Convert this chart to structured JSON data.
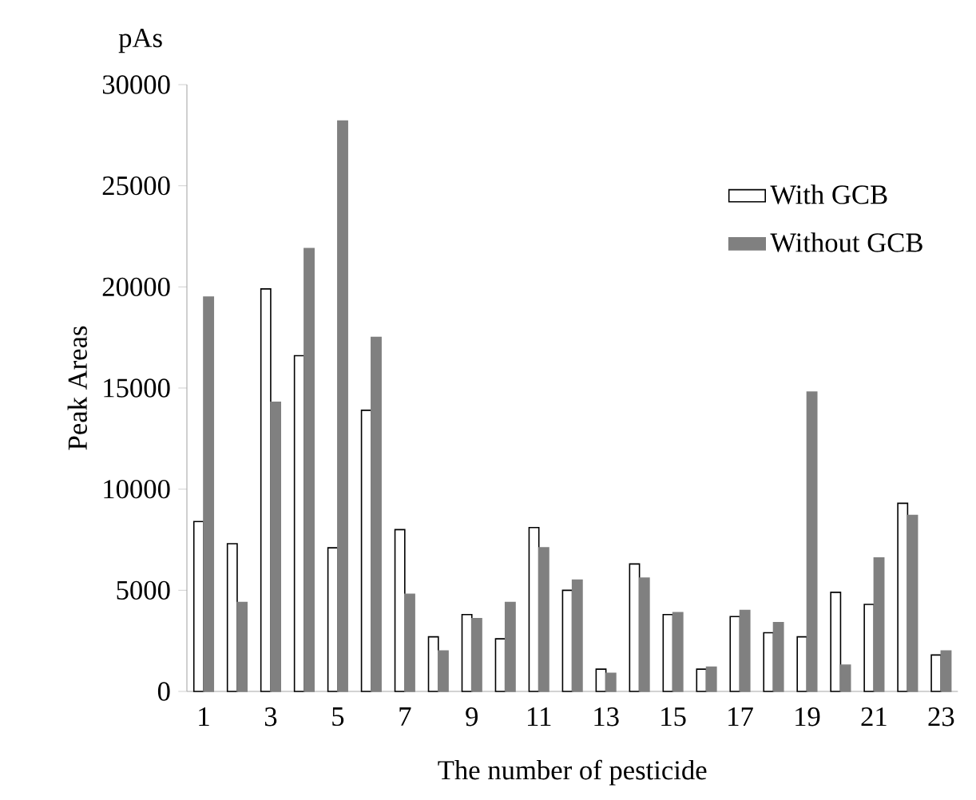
{
  "chart_data": {
    "type": "bar",
    "xlabel": "The number of pesticide",
    "ylabel": "Peak Areas",
    "annotations": [
      "pAs"
    ],
    "categories": [
      "1",
      null,
      "3",
      null,
      "5",
      null,
      "7",
      null,
      "9",
      null,
      "11",
      null,
      "13",
      null,
      "15",
      null,
      "17",
      null,
      "19",
      null,
      "21",
      null,
      "23"
    ],
    "series": [
      {
        "name": "With GCB",
        "color": "#ffffff",
        "values": [
          8400,
          7300,
          19900,
          16600,
          7100,
          13900,
          8000,
          2700,
          3800,
          2600,
          8100,
          5000,
          1100,
          6300,
          3800,
          1100,
          3700,
          2900,
          2700,
          4900,
          4300,
          9300,
          1800
        ]
      },
      {
        "name": "Without GCB",
        "color": "#808080",
        "values": [
          19500,
          4400,
          14300,
          21900,
          28200,
          17500,
          4800,
          2000,
          3600,
          4400,
          7100,
          5500,
          900,
          5600,
          3900,
          1200,
          4000,
          3400,
          14800,
          1300,
          6600,
          8700,
          2000
        ]
      }
    ],
    "ylim": [
      0,
      30000
    ],
    "yticks": [
      0,
      5000,
      10000,
      15000,
      20000,
      25000,
      30000
    ],
    "legend": "top right"
  }
}
